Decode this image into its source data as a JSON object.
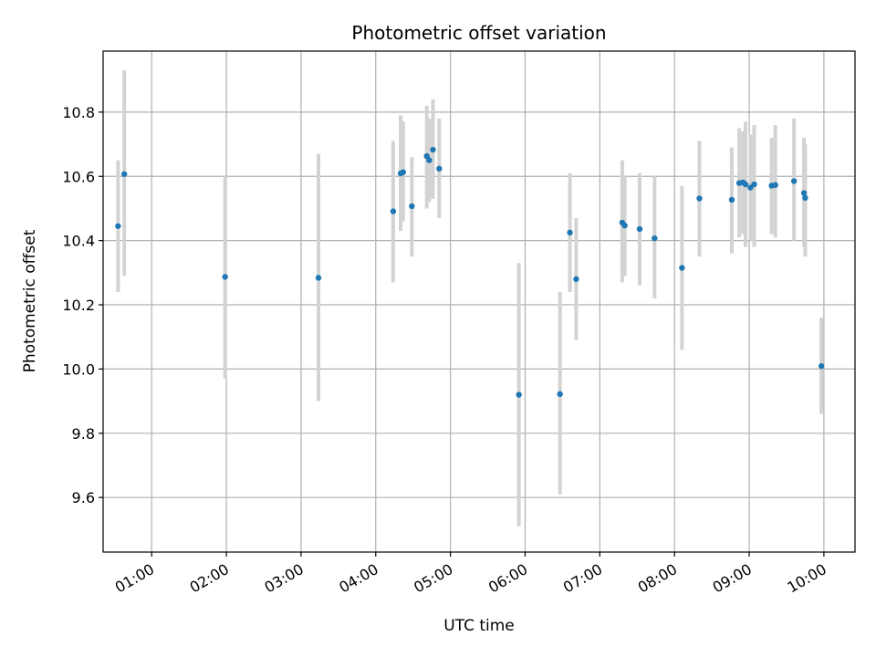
{
  "chart_data": {
    "type": "scatter",
    "title": "Photometric offset variation",
    "xlabel": "UTC time",
    "ylabel": "Photometric offset",
    "x_unit": "hours UTC",
    "xlim": [
      "00:21",
      "10:25"
    ],
    "ylim": [
      9.43,
      10.99
    ],
    "grid": true,
    "x_ticks": [
      "01:00",
      "02:00",
      "03:00",
      "04:00",
      "05:00",
      "06:00",
      "07:00",
      "08:00",
      "09:00",
      "10:00"
    ],
    "y_ticks": [
      "9.6",
      "9.8",
      "10.0",
      "10.2",
      "10.4",
      "10.6",
      "10.8"
    ],
    "colors": {
      "point": "#1f77b4",
      "errorbar": "#d3d3d3",
      "grid": "#b0b0b0"
    },
    "series": [
      {
        "points": [
          {
            "t": "00:33",
            "y": 10.445,
            "lo": 10.24,
            "hi": 10.65
          },
          {
            "t": "00:38",
            "y": 10.607,
            "lo": 10.29,
            "hi": 10.93
          },
          {
            "t": "01:59",
            "y": 10.287,
            "lo": 9.97,
            "hi": 10.6
          },
          {
            "t": "03:14",
            "y": 10.284,
            "lo": 9.9,
            "hi": 10.67
          },
          {
            "t": "04:14",
            "y": 10.491,
            "lo": 10.27,
            "hi": 10.71
          },
          {
            "t": "04:20",
            "y": 10.609,
            "lo": 10.43,
            "hi": 10.79
          },
          {
            "t": "04:22",
            "y": 10.613,
            "lo": 10.46,
            "hi": 10.77
          },
          {
            "t": "04:29",
            "y": 10.507,
            "lo": 10.35,
            "hi": 10.66
          },
          {
            "t": "04:41",
            "y": 10.663,
            "lo": 10.5,
            "hi": 10.82
          },
          {
            "t": "04:43",
            "y": 10.65,
            "lo": 10.52,
            "hi": 10.78
          },
          {
            "t": "04:46",
            "y": 10.683,
            "lo": 10.53,
            "hi": 10.84
          },
          {
            "t": "04:51",
            "y": 10.624,
            "lo": 10.47,
            "hi": 10.78
          },
          {
            "t": "05:55",
            "y": 9.92,
            "lo": 9.51,
            "hi": 10.33
          },
          {
            "t": "06:28",
            "y": 9.922,
            "lo": 9.61,
            "hi": 10.24
          },
          {
            "t": "06:36",
            "y": 10.425,
            "lo": 10.24,
            "hi": 10.61
          },
          {
            "t": "06:41",
            "y": 10.28,
            "lo": 10.09,
            "hi": 10.47
          },
          {
            "t": "07:18",
            "y": 10.456,
            "lo": 10.27,
            "hi": 10.65
          },
          {
            "t": "07:20",
            "y": 10.447,
            "lo": 10.29,
            "hi": 10.6
          },
          {
            "t": "07:32",
            "y": 10.436,
            "lo": 10.26,
            "hi": 10.61
          },
          {
            "t": "07:44",
            "y": 10.407,
            "lo": 10.22,
            "hi": 10.6
          },
          {
            "t": "08:06",
            "y": 10.315,
            "lo": 10.06,
            "hi": 10.57
          },
          {
            "t": "08:20",
            "y": 10.531,
            "lo": 10.35,
            "hi": 10.71
          },
          {
            "t": "08:46",
            "y": 10.527,
            "lo": 10.36,
            "hi": 10.69
          },
          {
            "t": "08:52",
            "y": 10.579,
            "lo": 10.41,
            "hi": 10.75
          },
          {
            "t": "08:55",
            "y": 10.581,
            "lo": 10.42,
            "hi": 10.74
          },
          {
            "t": "08:57",
            "y": 10.575,
            "lo": 10.38,
            "hi": 10.77
          },
          {
            "t": "09:01",
            "y": 10.565,
            "lo": 10.4,
            "hi": 10.73
          },
          {
            "t": "09:04",
            "y": 10.575,
            "lo": 10.38,
            "hi": 10.76
          },
          {
            "t": "09:18",
            "y": 10.571,
            "lo": 10.42,
            "hi": 10.72
          },
          {
            "t": "09:21",
            "y": 10.573,
            "lo": 10.41,
            "hi": 10.76
          },
          {
            "t": "09:36",
            "y": 10.585,
            "lo": 10.4,
            "hi": 10.78
          },
          {
            "t": "09:44",
            "y": 10.548,
            "lo": 10.38,
            "hi": 10.72
          },
          {
            "t": "09:45",
            "y": 10.533,
            "lo": 10.35,
            "hi": 10.7
          },
          {
            "t": "09:58",
            "y": 10.009,
            "lo": 9.86,
            "hi": 10.16
          }
        ]
      }
    ]
  }
}
